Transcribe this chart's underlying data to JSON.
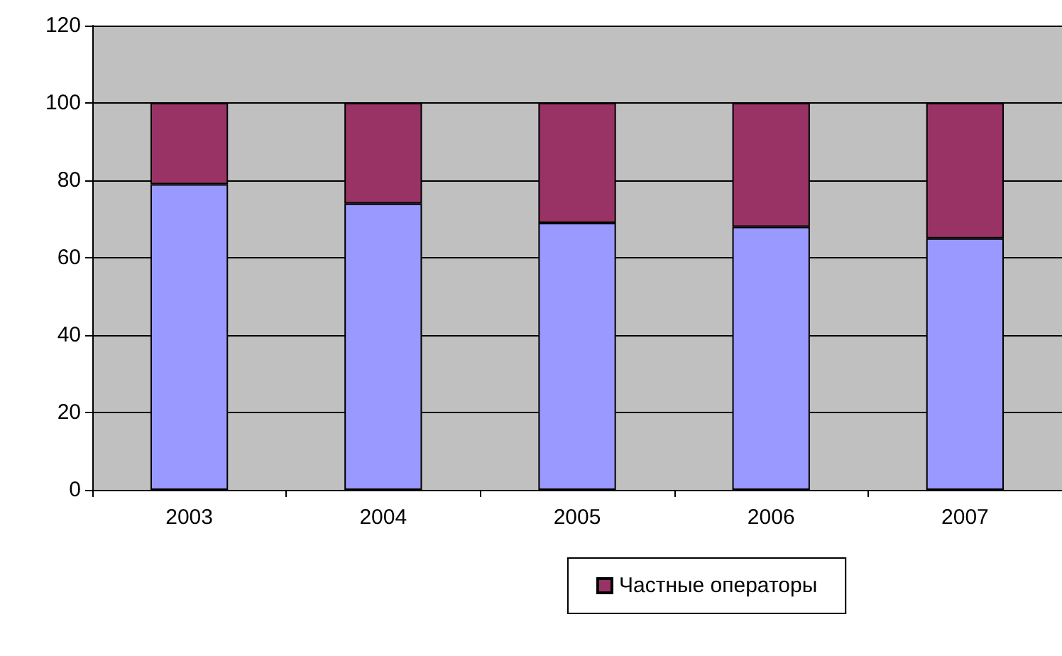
{
  "chart_data": {
    "type": "bar",
    "stacked": true,
    "categories": [
      "2003",
      "2004",
      "2005",
      "2006",
      "2007"
    ],
    "series": [
      {
        "color": "#9999ff",
        "values": [
          79,
          74,
          69,
          68,
          65
        ]
      },
      {
        "name": "Частные операторы",
        "color": "#993366",
        "values": [
          21,
          26,
          31,
          32,
          35
        ]
      }
    ],
    "ylim": [
      0,
      120
    ],
    "yticks": [
      0,
      20,
      40,
      60,
      80,
      100,
      120
    ],
    "grid": "y",
    "legend": "bottom"
  }
}
